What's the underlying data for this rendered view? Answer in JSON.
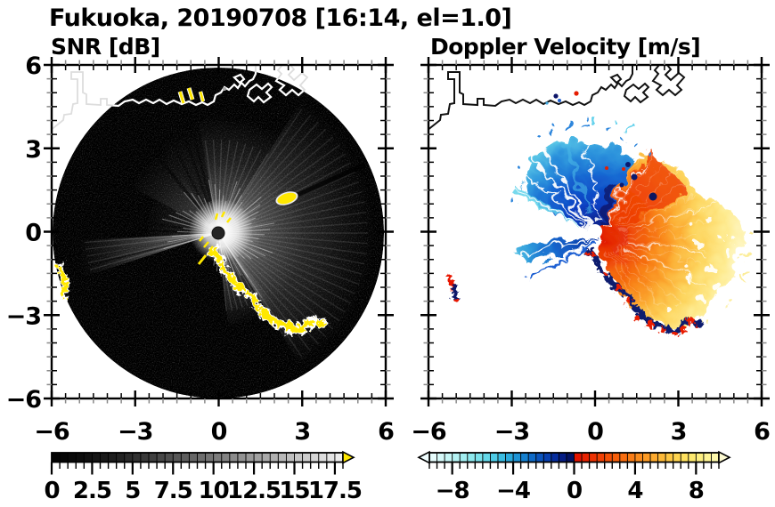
{
  "title": "Fukuoka, 20190708 [16:14, el=1.0]",
  "panels": {
    "snr": {
      "subtitle": "SNR [dB]"
    },
    "velocity": {
      "subtitle": "Doppler Velocity [m/s]"
    }
  },
  "axes": {
    "x_range": [
      -6,
      6
    ],
    "y_range": [
      -6,
      6
    ],
    "major_tick_values": [
      -6,
      -3,
      0,
      3,
      6
    ],
    "minor_tick_step": 0.5,
    "x_tick_labels": [
      "−6",
      "−3",
      "0",
      "3",
      "6"
    ],
    "y_tick_labels_top_to_bottom": [
      "6",
      "3",
      "0",
      "−3",
      "−6"
    ],
    "axis_color": "#000000",
    "minor_tick_color": "#8a8a8a"
  },
  "colorbars": {
    "snr": {
      "min": 0,
      "max": 18,
      "segment_step": 0.5,
      "tick_values": [
        0,
        2.5,
        5,
        7.5,
        10,
        12.5,
        15,
        17.5
      ],
      "tick_labels": [
        "0",
        "2.5",
        "5",
        "7.5",
        "10",
        "12.5",
        "15",
        "17.5"
      ],
      "minor_tick_step": 0.5,
      "colormap": "black-to-white grayscale",
      "over_arrow_color": "#ffe800"
    },
    "velocity": {
      "min": -9.5,
      "max": 9.5,
      "segment_step": 0.5,
      "tick_values": [
        -8,
        -4,
        0,
        4,
        8
      ],
      "tick_labels": [
        "−8",
        "−4",
        "0",
        "4",
        "8"
      ],
      "minor_tick_step": 0.5,
      "colormap": "cyan-blue-navy to red-orange-yellow diverging",
      "under_arrow_color": "#effdfe",
      "over_arrow_color": "#fdfad2",
      "stops": [
        "#e6fcfc",
        "#d6f9f9",
        "#c6f6f6",
        "#b4f2f3",
        "#a2eef1",
        "#8ee9ee",
        "#7ae2ec",
        "#64d8e9",
        "#4ecbe6",
        "#3abce2",
        "#2aaadd",
        "#1e94d6",
        "#1680cf",
        "#0f6ac7",
        "#0b54bd",
        "#0840b0",
        "#072e9e",
        "#051d85",
        "#041263",
        "#e31400",
        "#e82301",
        "#ed3202",
        "#f14104",
        "#f45007",
        "#f75f0b",
        "#f96e10",
        "#fa7d16",
        "#fb8c1d",
        "#fc9b25",
        "#fdaa2e",
        "#fdb938",
        "#fec743",
        "#fed450",
        "#fee05e",
        "#fee96e",
        "#feef80",
        "#fef494",
        "#fdf8ab"
      ]
    }
  },
  "palette": {
    "clutter_yellow": "#ffe800",
    "alias_navy": "#101b6e",
    "clutter_red": "#e81c00",
    "coastline_right": "#111111",
    "coastline_left_over_disk": "#ffffff",
    "disk_black": "#000000"
  },
  "chart_data": {
    "type": "heatmap",
    "figure": "dual-panel Doppler lidar PPI scan",
    "site": "Fukuoka",
    "date": "20190708",
    "time": "16:14",
    "elevation_deg": 1.0,
    "panels": [
      {
        "name": "SNR",
        "units": "dB",
        "x_range": [
          -6,
          6
        ],
        "y_range": [
          -6,
          6
        ],
        "x_ticks": [
          -6,
          -3,
          0,
          3,
          6
        ],
        "y_ticks": [
          -6,
          -3,
          0,
          3,
          6
        ],
        "colorbar_range": [
          0,
          18
        ],
        "colorbar_ticks": [
          0,
          2.5,
          5,
          7.5,
          10,
          12.5,
          15,
          17.5
        ],
        "colormap": "grayscale with yellow over-range arrow",
        "features": [
          "circular scan disk of radius ~6 km centered on the lidar at (0,0)",
          "bright SNR core with radial streaks around the lidar",
          "dark blocked sector toward the southwest and narrow shadow rays",
          "high-SNR yellow clutter chain along the coastline arc from (0,-0.7) to (3.4,-3.1)",
          "yellow clutter sliver at the west rim near (-5.9,-1.8)",
          "isolated yellow echo near (2.4,1.2) with dark streak behind it",
          "small yellow ship echoes near (-1.4,5.0)",
          "white coastline overlay across the north of the disk"
        ]
      },
      {
        "name": "Doppler Velocity",
        "units": "m/s",
        "x_range": [
          -6,
          6
        ],
        "y_range": [
          -6,
          6
        ],
        "x_ticks": [
          -6,
          -3,
          0,
          3,
          6
        ],
        "y_ticks": [
          -6,
          -3,
          0,
          3,
          6
        ],
        "colorbar_range": [
          -9.5,
          9.5
        ],
        "colorbar_ticks": [
          -8,
          -4,
          0,
          4,
          8
        ],
        "colormap": "diverging cyan-blue-navy (toward) / red-orange-yellow (away)",
        "features": [
          "negative-velocity blue fan northwest of the lidar reaching ~(-2.8,3.3)",
          "separate blue wedge pointing west to ~(-3.1,-0.4) with cyan tip",
          "positive-velocity red/orange/yellow fan east-southeast reaching ~(5,0)",
          "pale-yellow speckled far field with white gaps",
          "dark-navy aliased band with red fringes along the coastal clutter arc (0,-0.7) to (3.4,-3.1)",
          "isolated red/navy clutter echo near (-5.6,-1.8)",
          "small red/navy ship echoes near (-1.4,4.8)",
          "black coastline outline across the north",
          "white data gap at the lidar location (0,0)"
        ]
      }
    ]
  }
}
